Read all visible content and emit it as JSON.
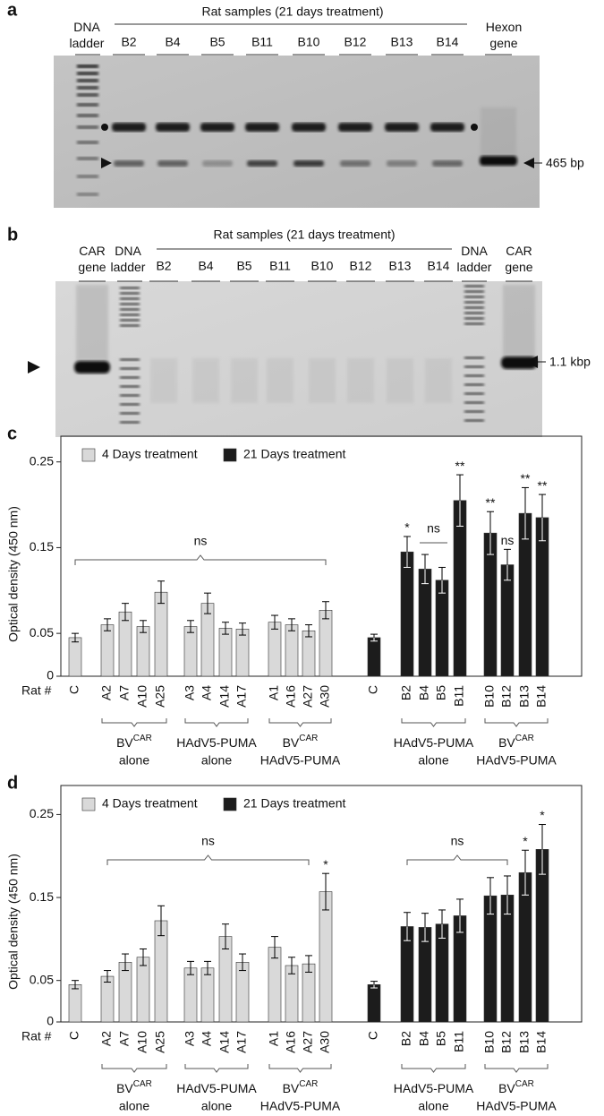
{
  "panel_a": {
    "label": "a",
    "ladder": "DNA ladder",
    "header": "Rat samples (21 days treatment)",
    "lanes": [
      "B2",
      "B4",
      "B5",
      "B11",
      "B10",
      "B12",
      "B13",
      "B14"
    ],
    "control": "Hexon gene",
    "size": "465 bp"
  },
  "panel_b": {
    "label": "b",
    "control": "CAR gene",
    "ladder": "DNA ladder",
    "header": "Rat samples (21 days treatment)",
    "lanes": [
      "B2",
      "B4",
      "B5",
      "B11",
      "B10",
      "B12",
      "B13",
      "B14"
    ],
    "size": "1.1 kbp"
  },
  "chart_data": [
    {
      "type": "bar",
      "label": "c",
      "y_label": "Optical density (450 nm)",
      "x_label": "Rat #",
      "ylim": [
        0,
        0.28
      ],
      "yticks": [
        0,
        0.05,
        0.15,
        0.25
      ],
      "legend": "top-left",
      "categories": [
        "C",
        "A2",
        "A7",
        "A10",
        "A25",
        "A3",
        "A4",
        "A14",
        "A17",
        "A1",
        "A16",
        "A27",
        "A30",
        "C",
        "B2",
        "B4",
        "B5",
        "B11",
        "B10",
        "B12",
        "B13",
        "B14"
      ],
      "series": [
        {
          "name": "4 Days treatment",
          "color": "#d9d9d9",
          "values": [
            0.045,
            0.06,
            0.075,
            0.058,
            0.098,
            0.058,
            0.085,
            0.056,
            0.055,
            0.063,
            0.06,
            0.053,
            0.077,
            null,
            null,
            null,
            null,
            null,
            null,
            null,
            null,
            null
          ],
          "errors": [
            0.005,
            0.007,
            0.01,
            0.007,
            0.013,
            0.007,
            0.012,
            0.007,
            0.007,
            0.008,
            0.007,
            0.007,
            0.01,
            null,
            null,
            null,
            null,
            null,
            null,
            null,
            null,
            null
          ]
        },
        {
          "name": "21 Days treatment",
          "color": "#1c1c1c",
          "values": [
            null,
            null,
            null,
            null,
            null,
            null,
            null,
            null,
            null,
            null,
            null,
            null,
            null,
            0.045,
            0.145,
            0.125,
            0.112,
            0.205,
            0.167,
            0.13,
            0.19,
            0.185
          ],
          "errors": [
            null,
            null,
            null,
            null,
            null,
            null,
            null,
            null,
            null,
            null,
            null,
            null,
            null,
            0.004,
            0.018,
            0.017,
            0.015,
            0.03,
            0.025,
            0.018,
            0.03,
            0.027
          ]
        }
      ],
      "significance": [
        null,
        null,
        null,
        null,
        null,
        null,
        null,
        null,
        null,
        null,
        null,
        null,
        null,
        null,
        "*",
        null,
        null,
        "**",
        "**",
        "ns",
        "**",
        "**"
      ],
      "brackets": [
        {
          "text": "ns"
        },
        {
          "text": "ns"
        }
      ],
      "groups": [
        {
          "name": "BV",
          "sup": "CAR",
          "line2": "alone"
        },
        {
          "name": "HAdV5-PUMA",
          "line2": "alone"
        },
        {
          "name": "BV",
          "sup": "CAR",
          "line2": "HAdV5-PUMA"
        },
        {
          "name": "HAdV5-PUMA",
          "line2": "alone"
        },
        {
          "name": "BV",
          "sup": "CAR",
          "line2": "HAdV5-PUMA"
        }
      ]
    },
    {
      "type": "bar",
      "label": "d",
      "y_label": "Optical density (450 nm)",
      "x_label": "Rat #",
      "ylim": [
        0,
        0.285
      ],
      "yticks": [
        0,
        0.05,
        0.15,
        0.25
      ],
      "legend": "top-left",
      "categories": [
        "C",
        "A2",
        "A7",
        "A10",
        "A25",
        "A3",
        "A4",
        "A14",
        "A17",
        "A1",
        "A16",
        "A27",
        "A30",
        "C",
        "B2",
        "B4",
        "B5",
        "B11",
        "B10",
        "B12",
        "B13",
        "B14"
      ],
      "series": [
        {
          "name": "4 Days treatment",
          "color": "#d9d9d9",
          "values": [
            0.045,
            0.055,
            0.072,
            0.078,
            0.122,
            0.065,
            0.065,
            0.103,
            0.072,
            0.09,
            0.068,
            0.07,
            0.157,
            null,
            null,
            null,
            null,
            null,
            null,
            null,
            null,
            null
          ],
          "errors": [
            0.005,
            0.007,
            0.01,
            0.01,
            0.018,
            0.008,
            0.008,
            0.015,
            0.01,
            0.013,
            0.01,
            0.01,
            0.022,
            null,
            null,
            null,
            null,
            null,
            null,
            null,
            null,
            null
          ]
        },
        {
          "name": "21 Days treatment",
          "color": "#1c1c1c",
          "values": [
            null,
            null,
            null,
            null,
            null,
            null,
            null,
            null,
            null,
            null,
            null,
            null,
            null,
            0.045,
            0.115,
            0.114,
            0.118,
            0.128,
            0.152,
            0.153,
            0.18,
            0.208
          ],
          "errors": [
            null,
            null,
            null,
            null,
            null,
            null,
            null,
            null,
            null,
            null,
            null,
            null,
            null,
            0.004,
            0.017,
            0.017,
            0.017,
            0.02,
            0.022,
            0.023,
            0.027,
            0.03
          ]
        }
      ],
      "significance": [
        null,
        null,
        null,
        null,
        null,
        null,
        null,
        null,
        null,
        null,
        null,
        null,
        "*",
        null,
        null,
        null,
        null,
        null,
        null,
        null,
        "*",
        "*"
      ],
      "brackets": [
        {
          "text": "ns"
        },
        {
          "text": "ns"
        }
      ],
      "groups": [
        {
          "name": "BV",
          "sup": "CAR",
          "line2": "alone"
        },
        {
          "name": "HAdV5-PUMA",
          "line2": "alone"
        },
        {
          "name": "BV",
          "sup": "CAR",
          "line2": "HAdV5-PUMA"
        },
        {
          "name": "HAdV5-PUMA",
          "line2": "alone"
        },
        {
          "name": "BV",
          "sup": "CAR",
          "line2": "HAdV5-PUMA"
        }
      ]
    }
  ]
}
